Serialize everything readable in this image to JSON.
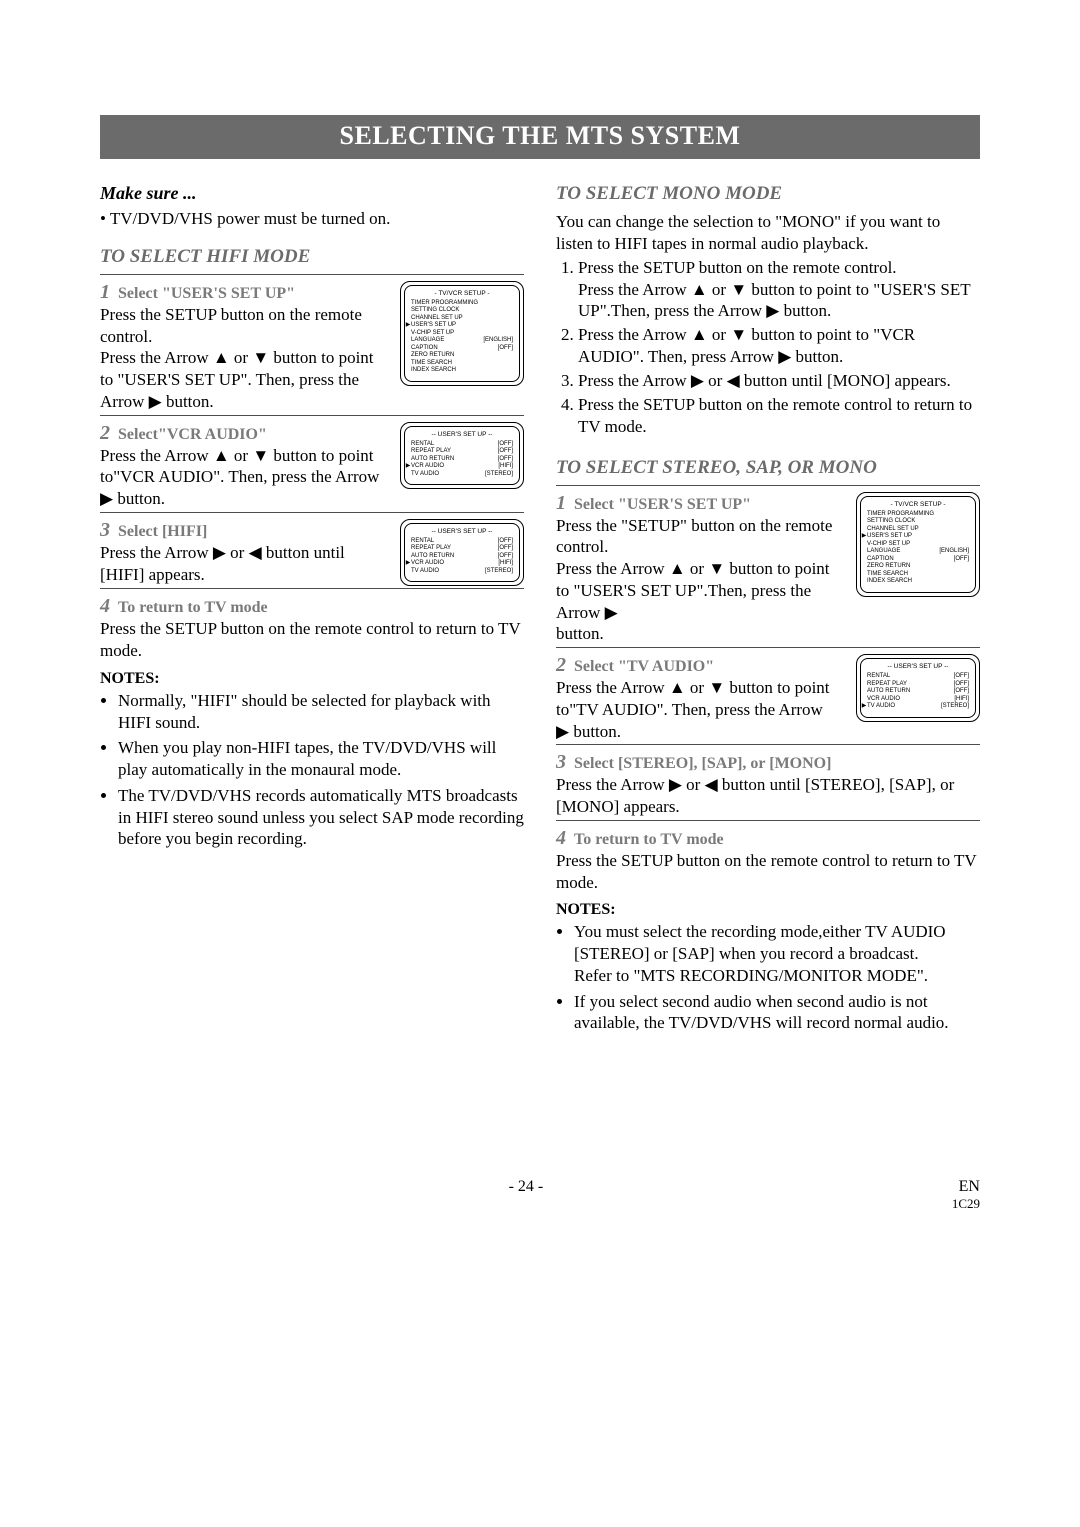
{
  "title": "SELECTING THE MTS SYSTEM",
  "make_sure": "Make sure ...",
  "make_sure_bullet": "• TV/DVD/VHS power must be turned on.",
  "left": {
    "section": "TO SELECT HIFI MODE",
    "step1_num": "1",
    "step1_head": "Select \"USER'S SET UP\"",
    "step1_body1": "Press the SETUP button on the remote control.",
    "step1_body2": "Press the Arrow ▲ or ▼ button to point to \"USER'S SET UP\". Then, press the Arrow ▶ button.",
    "step2_num": "2",
    "step2_head": "Select\"VCR AUDIO\"",
    "step2_body": "Press the Arrow ▲ or ▼ button to point to\"VCR AUDIO\". Then, press the Arrow ▶ button.",
    "step3_num": "3",
    "step3_head": "Select [HIFI]",
    "step3_body": "Press the Arrow ▶ or ◀ button until [HIFI] appears.",
    "step4_num": "4",
    "step4_head": "To return to TV mode",
    "step4_body": "Press the SETUP button on the remote control to return to TV mode.",
    "notes_head": "NOTES:",
    "notes": [
      "Normally, \"HIFI\" should be selected for playback with HIFI sound.",
      "When you play non-HIFI tapes, the TV/DVD/VHS will play automatically in the monaural mode.",
      "The TV/DVD/VHS records automatically MTS broadcasts in HIFI stereo sound unless you select SAP mode recording before you begin recording."
    ]
  },
  "right": {
    "mono_section": "TO SELECT MONO MODE",
    "mono_intro": "You can change the selection to \"MONO\" if you want to listen to HIFI tapes in normal audio playback.",
    "mono_steps": [
      "Press the SETUP button on the remote control.",
      "Press the Arrow ▲ or ▼ button to point to \"USER'S SET UP\".Then, press the Arrow ▶ button.",
      "Press the Arrow ▲ or ▼ button to point to \"VCR AUDIO\". Then, press Arrow ▶ button.",
      "Press the Arrow ▶ or ◀ button until [MONO] appears.",
      "Press the SETUP button on the remote control to return to TV mode."
    ],
    "stereo_section": "TO SELECT STEREO, SAP, OR MONO",
    "s1_num": "1",
    "s1_head": "Select \"USER'S SET UP\"",
    "s1_body1": "Press the \"SETUP\" button on the remote control.",
    "s1_body2": "Press the Arrow ▲ or ▼ button to point to \"USER'S SET UP\".Then, press the Arrow ▶",
    "s1_body3": "button.",
    "s2_num": "2",
    "s2_head": "Select \"TV AUDIO\"",
    "s2_body": "Press the Arrow ▲ or ▼ button to point to\"TV AUDIO\". Then, press the Arrow ▶ button.",
    "s3_num": "3",
    "s3_head": "Select [STEREO], [SAP], or [MONO]",
    "s3_body": "Press the Arrow ▶ or ◀ button until [STEREO], [SAP], or [MONO] appears.",
    "s4_num": "4",
    "s4_head": "To return to TV mode",
    "s4_body": "Press the SETUP button on the remote control to return to TV mode.",
    "notes_head": "NOTES:",
    "notes": [
      "You must select the recording mode,either TV AUDIO [STEREO] or [SAP] when you record a broadcast.\nRefer to \"MTS RECORDING/MONITOR MODE\".",
      "If you select second audio when second audio is not available, the TV/DVD/VHS will record normal audio."
    ]
  },
  "osd_tv": {
    "title": "- TV/VCR SETUP -",
    "lines": [
      {
        "label": "TIMER PROGRAMMING",
        "val": ""
      },
      {
        "label": "SETTING CLOCK",
        "val": ""
      },
      {
        "label": "CHANNEL SET UP",
        "val": ""
      },
      {
        "label": "USER'S SET UP",
        "val": "",
        "cursor": true
      },
      {
        "label": "V-CHIP SET UP",
        "val": ""
      },
      {
        "label": "LANGUAGE",
        "val": "[ENGLISH]"
      },
      {
        "label": "CAPTION",
        "val": "[OFF]"
      },
      {
        "label": "ZERO RETURN",
        "val": ""
      },
      {
        "label": "TIME SEARCH",
        "val": ""
      },
      {
        "label": "INDEX SEARCH",
        "val": ""
      }
    ]
  },
  "osd_user_vcr": {
    "title": "-- USER'S SET UP --",
    "lines": [
      {
        "label": "RENTAL",
        "val": "[OFF]"
      },
      {
        "label": "REPEAT PLAY",
        "val": "[OFF]"
      },
      {
        "label": "AUTO RETURN",
        "val": "[OFF]"
      },
      {
        "label": "VCR AUDIO",
        "val": "[HIFI]",
        "cursor": true
      },
      {
        "label": "TV AUDIO",
        "val": "[STEREO]"
      }
    ]
  },
  "osd_user_tv": {
    "title": "-- USER'S SET UP --",
    "lines": [
      {
        "label": "RENTAL",
        "val": "[OFF]"
      },
      {
        "label": "REPEAT PLAY",
        "val": "[OFF]"
      },
      {
        "label": "AUTO RETURN",
        "val": "[OFF]"
      },
      {
        "label": "VCR AUDIO",
        "val": "[HIFI]"
      },
      {
        "label": "TV AUDIO",
        "val": "[STEREO]",
        "cursor": true
      }
    ]
  },
  "footer": {
    "page": "- 24 -",
    "lang": "EN",
    "code": "1C29"
  }
}
